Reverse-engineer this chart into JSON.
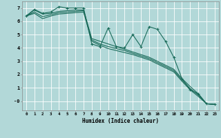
{
  "xlabel": "Humidex (Indice chaleur)",
  "background_color": "#b2d8d8",
  "grid_color": "#ffffff",
  "line_color": "#1a6b5a",
  "xlim": [
    -0.5,
    23.5
  ],
  "ylim": [
    -0.7,
    7.5
  ],
  "xtick_labels": [
    "0",
    "1",
    "2",
    "3",
    "4",
    "5",
    "6",
    "7",
    "8",
    "9",
    "10",
    "11",
    "12",
    "13",
    "14",
    "15",
    "16",
    "17",
    "18",
    "19",
    "20",
    "21",
    "22",
    "23"
  ],
  "ytick_vals": [
    0,
    1,
    2,
    3,
    4,
    5,
    6,
    7
  ],
  "ytick_labels": [
    "-0",
    "1",
    "2",
    "3",
    "4",
    "5",
    "6",
    "7"
  ],
  "series_smooth": [
    [
      6.4,
      6.85,
      6.55,
      6.6,
      6.75,
      6.8,
      6.85,
      6.85,
      4.7,
      4.5,
      4.3,
      4.1,
      3.9,
      3.7,
      3.5,
      3.3,
      3.0,
      2.7,
      2.4,
      1.7,
      1.1,
      0.55,
      -0.2,
      -0.25
    ],
    [
      6.4,
      6.7,
      6.35,
      6.5,
      6.65,
      6.7,
      6.75,
      6.8,
      4.6,
      4.3,
      4.1,
      3.95,
      3.8,
      3.6,
      3.4,
      3.2,
      2.9,
      2.6,
      2.3,
      1.6,
      0.95,
      0.45,
      -0.2,
      -0.25
    ],
    [
      6.4,
      6.6,
      6.2,
      6.4,
      6.55,
      6.6,
      6.65,
      6.7,
      4.5,
      4.2,
      3.95,
      3.8,
      3.65,
      3.5,
      3.3,
      3.1,
      2.8,
      2.5,
      2.2,
      1.5,
      0.85,
      0.35,
      -0.2,
      -0.25
    ]
  ],
  "series_jagged": [
    6.4,
    6.9,
    6.6,
    6.7,
    7.1,
    7.0,
    7.0,
    7.0,
    4.3,
    4.1,
    5.5,
    4.1,
    4.0,
    5.0,
    4.1,
    5.6,
    5.4,
    4.5,
    3.3,
    1.7,
    0.85,
    0.55,
    -0.2,
    -0.25
  ]
}
